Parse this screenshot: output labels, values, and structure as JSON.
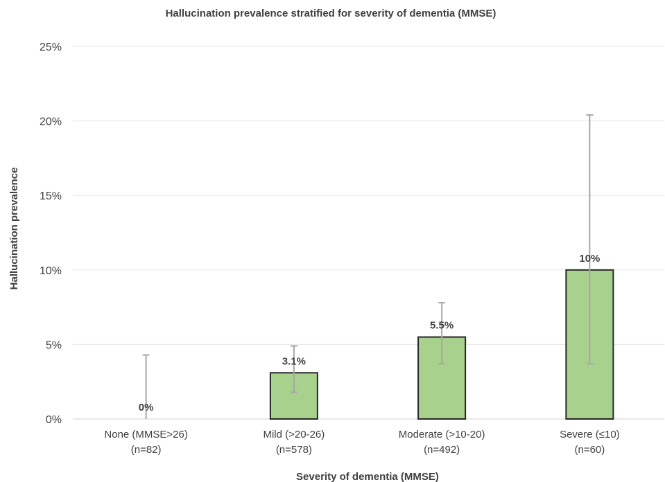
{
  "chart_data": {
    "type": "bar",
    "title": "Hallucination prevalence  stratified  for severity  of dementia (MMSE)",
    "xlabel": "Severity  of dementia (MMSE)",
    "ylabel": "Hallucination  prevalence",
    "ylim": [
      0,
      25
    ],
    "yticks": [
      0,
      5,
      10,
      15,
      20,
      25
    ],
    "ytick_labels": [
      "0%",
      "5%",
      "10%",
      "15%",
      "20%",
      "25%"
    ],
    "grid": true,
    "categories": [
      {
        "label": "None (MMSE>26)",
        "n": "(n=82)"
      },
      {
        "label": "Mild (>20-26)",
        "n": "(n=578)"
      },
      {
        "label": "Moderate (>10-20)",
        "n": "(n=492)"
      },
      {
        "label": "Severe  (≤10)",
        "n": "(n=60)"
      }
    ],
    "values": [
      0,
      3.1,
      5.5,
      10
    ],
    "data_labels": [
      "0%",
      "3.1%",
      "5.5%",
      "10%"
    ],
    "error_low": [
      0,
      1.8,
      3.7,
      3.7
    ],
    "error_high": [
      4.3,
      4.9,
      7.8,
      20.4
    ],
    "bar_color": "#a9d18e",
    "bar_edge_color": "#262626",
    "error_color": "#a6a6a6"
  }
}
